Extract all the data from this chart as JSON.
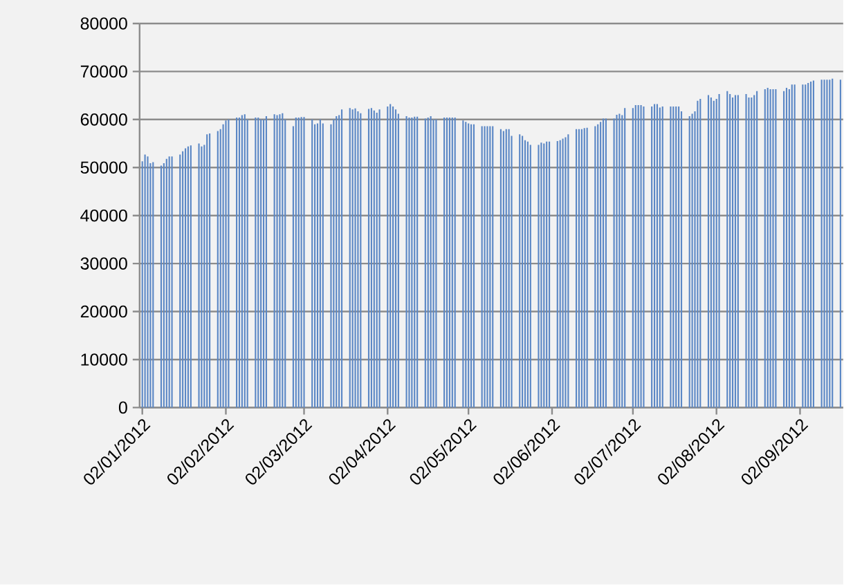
{
  "chart_data": {
    "type": "bar",
    "color": "#5b87c5",
    "grid": "y",
    "ylim": [
      0,
      80000
    ],
    "yticks": [
      0,
      10000,
      20000,
      30000,
      40000,
      50000,
      60000,
      70000,
      80000
    ],
    "xlim": [
      "2012-01-01",
      "2012-09-18"
    ],
    "xticks": [
      {
        "value": "2012-01-02",
        "label": "02/01/2012"
      },
      {
        "value": "2012-02-02",
        "label": "02/02/2012"
      },
      {
        "value": "2012-03-02",
        "label": "02/03/2012"
      },
      {
        "value": "2012-04-02",
        "label": "02/04/2012"
      },
      {
        "value": "2012-05-02",
        "label": "02/05/2012"
      },
      {
        "value": "2012-06-02",
        "label": "02/06/2012"
      },
      {
        "value": "2012-07-02",
        "label": "02/07/2012"
      },
      {
        "value": "2012-08-02",
        "label": "02/08/2012"
      },
      {
        "value": "2012-09-02",
        "label": "02/09/2012"
      }
    ],
    "x": [
      "2012-01-02",
      "2012-01-03",
      "2012-01-04",
      "2012-01-05",
      "2012-01-06",
      "2012-01-09",
      "2012-01-10",
      "2012-01-11",
      "2012-01-12",
      "2012-01-13",
      "2012-01-16",
      "2012-01-17",
      "2012-01-18",
      "2012-01-19",
      "2012-01-20",
      "2012-01-23",
      "2012-01-24",
      "2012-01-25",
      "2012-01-26",
      "2012-01-27",
      "2012-01-30",
      "2012-01-31",
      "2012-02-01",
      "2012-02-02",
      "2012-02-03",
      "2012-02-06",
      "2012-02-07",
      "2012-02-08",
      "2012-02-09",
      "2012-02-10",
      "2012-02-13",
      "2012-02-14",
      "2012-02-15",
      "2012-02-16",
      "2012-02-17",
      "2012-02-20",
      "2012-02-21",
      "2012-02-22",
      "2012-02-23",
      "2012-02-24",
      "2012-02-27",
      "2012-02-28",
      "2012-02-29",
      "2012-03-01",
      "2012-03-02",
      "2012-03-05",
      "2012-03-06",
      "2012-03-07",
      "2012-03-08",
      "2012-03-09",
      "2012-03-12",
      "2012-03-13",
      "2012-03-14",
      "2012-03-15",
      "2012-03-16",
      "2012-03-19",
      "2012-03-20",
      "2012-03-21",
      "2012-03-22",
      "2012-03-23",
      "2012-03-26",
      "2012-03-27",
      "2012-03-28",
      "2012-03-29",
      "2012-03-30",
      "2012-04-02",
      "2012-04-03",
      "2012-04-04",
      "2012-04-05",
      "2012-04-06",
      "2012-04-09",
      "2012-04-10",
      "2012-04-11",
      "2012-04-12",
      "2012-04-13",
      "2012-04-16",
      "2012-04-17",
      "2012-04-18",
      "2012-04-19",
      "2012-04-20",
      "2012-04-23",
      "2012-04-24",
      "2012-04-25",
      "2012-04-26",
      "2012-04-27",
      "2012-04-30",
      "2012-05-01",
      "2012-05-02",
      "2012-05-03",
      "2012-05-04",
      "2012-05-07",
      "2012-05-08",
      "2012-05-09",
      "2012-05-10",
      "2012-05-11",
      "2012-05-14",
      "2012-05-15",
      "2012-05-16",
      "2012-05-17",
      "2012-05-18",
      "2012-05-21",
      "2012-05-22",
      "2012-05-23",
      "2012-05-24",
      "2012-05-25",
      "2012-05-28",
      "2012-05-29",
      "2012-05-30",
      "2012-05-31",
      "2012-06-01",
      "2012-06-04",
      "2012-06-05",
      "2012-06-06",
      "2012-06-07",
      "2012-06-08",
      "2012-06-11",
      "2012-06-12",
      "2012-06-13",
      "2012-06-14",
      "2012-06-15",
      "2012-06-18",
      "2012-06-19",
      "2012-06-20",
      "2012-06-21",
      "2012-06-22",
      "2012-06-25",
      "2012-06-26",
      "2012-06-27",
      "2012-06-28",
      "2012-06-29",
      "2012-07-02",
      "2012-07-03",
      "2012-07-04",
      "2012-07-05",
      "2012-07-06",
      "2012-07-09",
      "2012-07-10",
      "2012-07-11",
      "2012-07-12",
      "2012-07-13",
      "2012-07-16",
      "2012-07-17",
      "2012-07-18",
      "2012-07-19",
      "2012-07-20",
      "2012-07-23",
      "2012-07-24",
      "2012-07-25",
      "2012-07-26",
      "2012-07-27",
      "2012-07-30",
      "2012-07-31",
      "2012-08-01",
      "2012-08-02",
      "2012-08-03",
      "2012-08-06",
      "2012-08-07",
      "2012-08-08",
      "2012-08-09",
      "2012-08-10",
      "2012-08-13",
      "2012-08-14",
      "2012-08-15",
      "2012-08-16",
      "2012-08-17",
      "2012-08-20",
      "2012-08-21",
      "2012-08-22",
      "2012-08-23",
      "2012-08-24",
      "2012-08-27",
      "2012-08-28",
      "2012-08-29",
      "2012-08-30",
      "2012-08-31",
      "2012-09-03",
      "2012-09-04",
      "2012-09-05",
      "2012-09-06",
      "2012-09-07",
      "2012-09-10",
      "2012-09-11",
      "2012-09-12",
      "2012-09-13",
      "2012-09-14",
      "2012-09-17"
    ],
    "values": [
      51300,
      52700,
      52300,
      50900,
      51100,
      50400,
      50900,
      51800,
      52300,
      52300,
      52700,
      53400,
      54000,
      54400,
      54600,
      55000,
      54400,
      54700,
      56900,
      57100,
      57600,
      58000,
      59000,
      59800,
      60000,
      60400,
      60400,
      60900,
      61100,
      60000,
      60400,
      60400,
      60000,
      60000,
      60700,
      61100,
      60900,
      61100,
      61300,
      60000,
      58600,
      60400,
      60400,
      60500,
      60500,
      60000,
      59000,
      59200,
      60000,
      59200,
      59000,
      60000,
      60700,
      60900,
      62100,
      62400,
      62100,
      62300,
      61700,
      61300,
      62200,
      62400,
      61900,
      61400,
      62100,
      62700,
      63200,
      62700,
      62100,
      61200,
      60700,
      60400,
      60400,
      60600,
      60600,
      60200,
      60400,
      60700,
      60000,
      60000,
      60400,
      60400,
      60400,
      60400,
      60400,
      59800,
      59500,
      59200,
      59000,
      59000,
      58600,
      58600,
      58600,
      58600,
      58600,
      58000,
      57600,
      58000,
      58000,
      56600,
      56900,
      56600,
      55700,
      55400,
      54700,
      54700,
      55200,
      55000,
      55400,
      55400,
      55500,
      55700,
      56000,
      56300,
      56900,
      58000,
      58000,
      58000,
      58200,
      58300,
      58600,
      59000,
      59500,
      60200,
      60200,
      60200,
      61000,
      61200,
      60900,
      62400,
      62400,
      63000,
      63000,
      63000,
      62700,
      62700,
      63200,
      63200,
      62500,
      62700,
      62700,
      62700,
      62700,
      62700,
      61700,
      60700,
      61200,
      61700,
      63900,
      64300,
      65100,
      64600,
      63900,
      64300,
      65300,
      65900,
      65300,
      64600,
      65100,
      65100,
      65300,
      64600,
      64600,
      65100,
      65900,
      66300,
      66600,
      66300,
      66300,
      66300,
      65900,
      66600,
      66300,
      67300,
      67300,
      67300,
      67300,
      67600,
      67900,
      68100,
      68300,
      68300,
      68300,
      68300,
      68500,
      68300
    ]
  }
}
